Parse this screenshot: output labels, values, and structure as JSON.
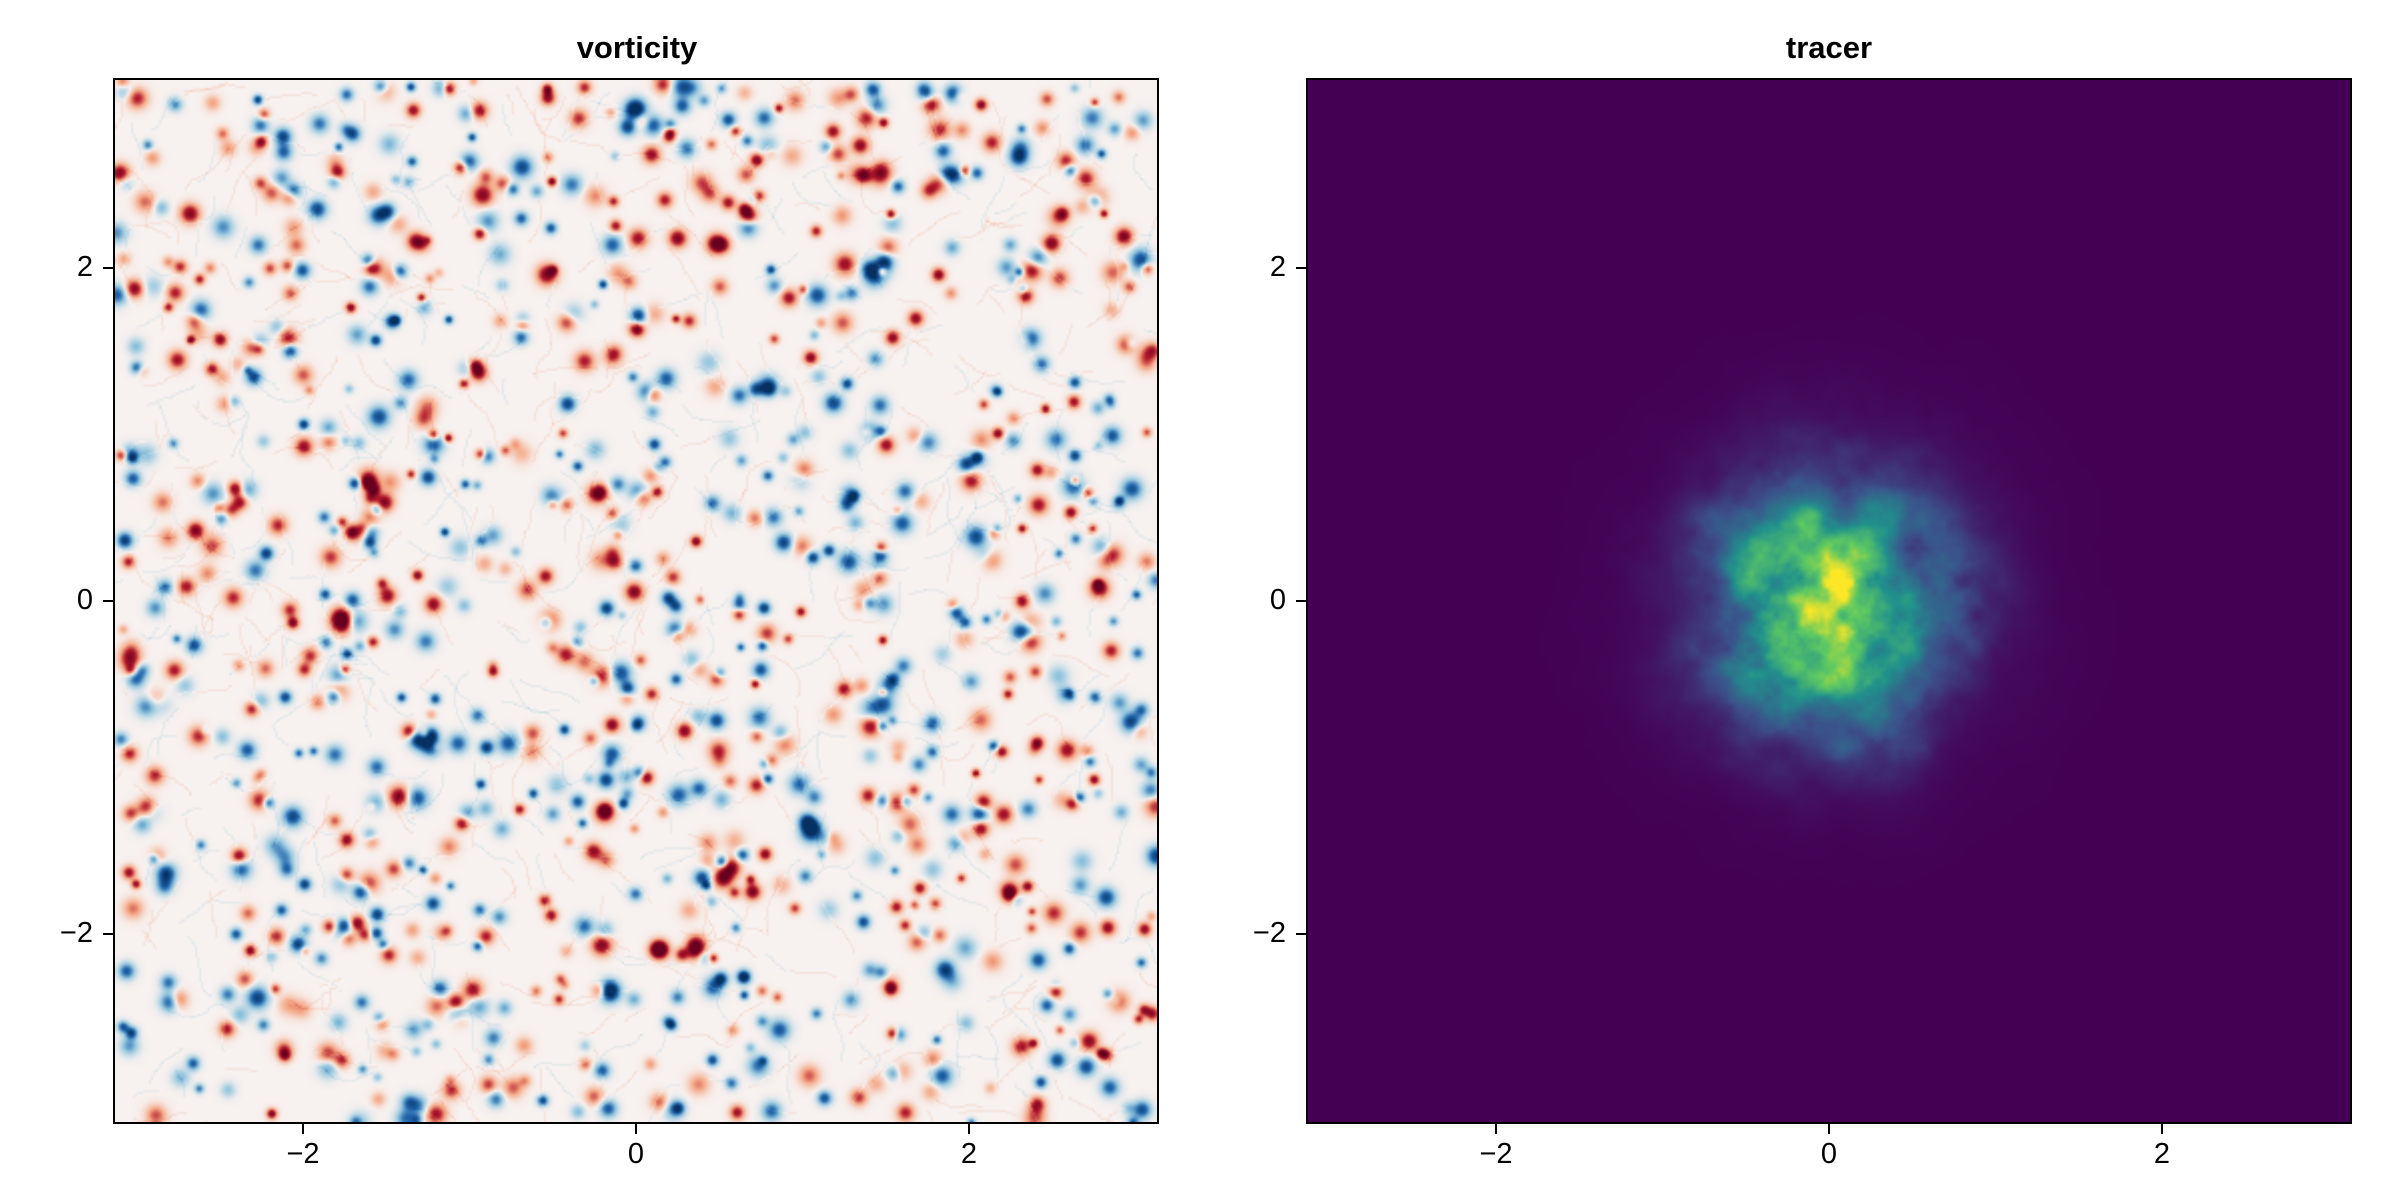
{
  "panels": [
    {
      "title": "vorticity",
      "colormap": "balance"
    },
    {
      "title": "tracer",
      "colormap": "viridis"
    }
  ],
  "chart_data": [
    {
      "type": "heatmap",
      "title": "vorticity",
      "xlabel": "",
      "ylabel": "",
      "xlim": [
        -3.14159,
        3.14159
      ],
      "ylim": [
        -3.14159,
        3.14159
      ],
      "xticks": [
        -2,
        0,
        2
      ],
      "yticks": [
        -2,
        0,
        2
      ],
      "xtick_labels": [
        "−2",
        "0",
        "2"
      ],
      "ytick_labels": [
        "−2",
        "0",
        "2"
      ],
      "colormap": [
        "#053061",
        "#2166ac",
        "#92c5de",
        "#f7f1ef",
        "#f4a582",
        "#b2182b",
        "#67001f"
      ],
      "field_description": "2D turbulent vorticity field with many small coherent vortices of both signs",
      "grid": false
    },
    {
      "type": "heatmap",
      "title": "tracer",
      "xlabel": "",
      "ylabel": "",
      "xlim": [
        -3.14159,
        3.14159
      ],
      "ylim": [
        -3.14159,
        3.14159
      ],
      "xticks": [
        -2,
        0,
        2
      ],
      "yticks": [
        -2,
        0,
        2
      ],
      "xtick_labels": [
        "−2",
        "0",
        "2"
      ],
      "ytick_labels": [
        "−2",
        "0",
        "2"
      ],
      "colormap": [
        "#440154",
        "#3b528b",
        "#21918c",
        "#5ec962",
        "#fde725"
      ],
      "field_description": "turbulently stirred tracer blob centered near origin, max ≈ at (0, 0)",
      "blob_center": [
        0.0,
        0.0
      ],
      "grid": false
    }
  ]
}
